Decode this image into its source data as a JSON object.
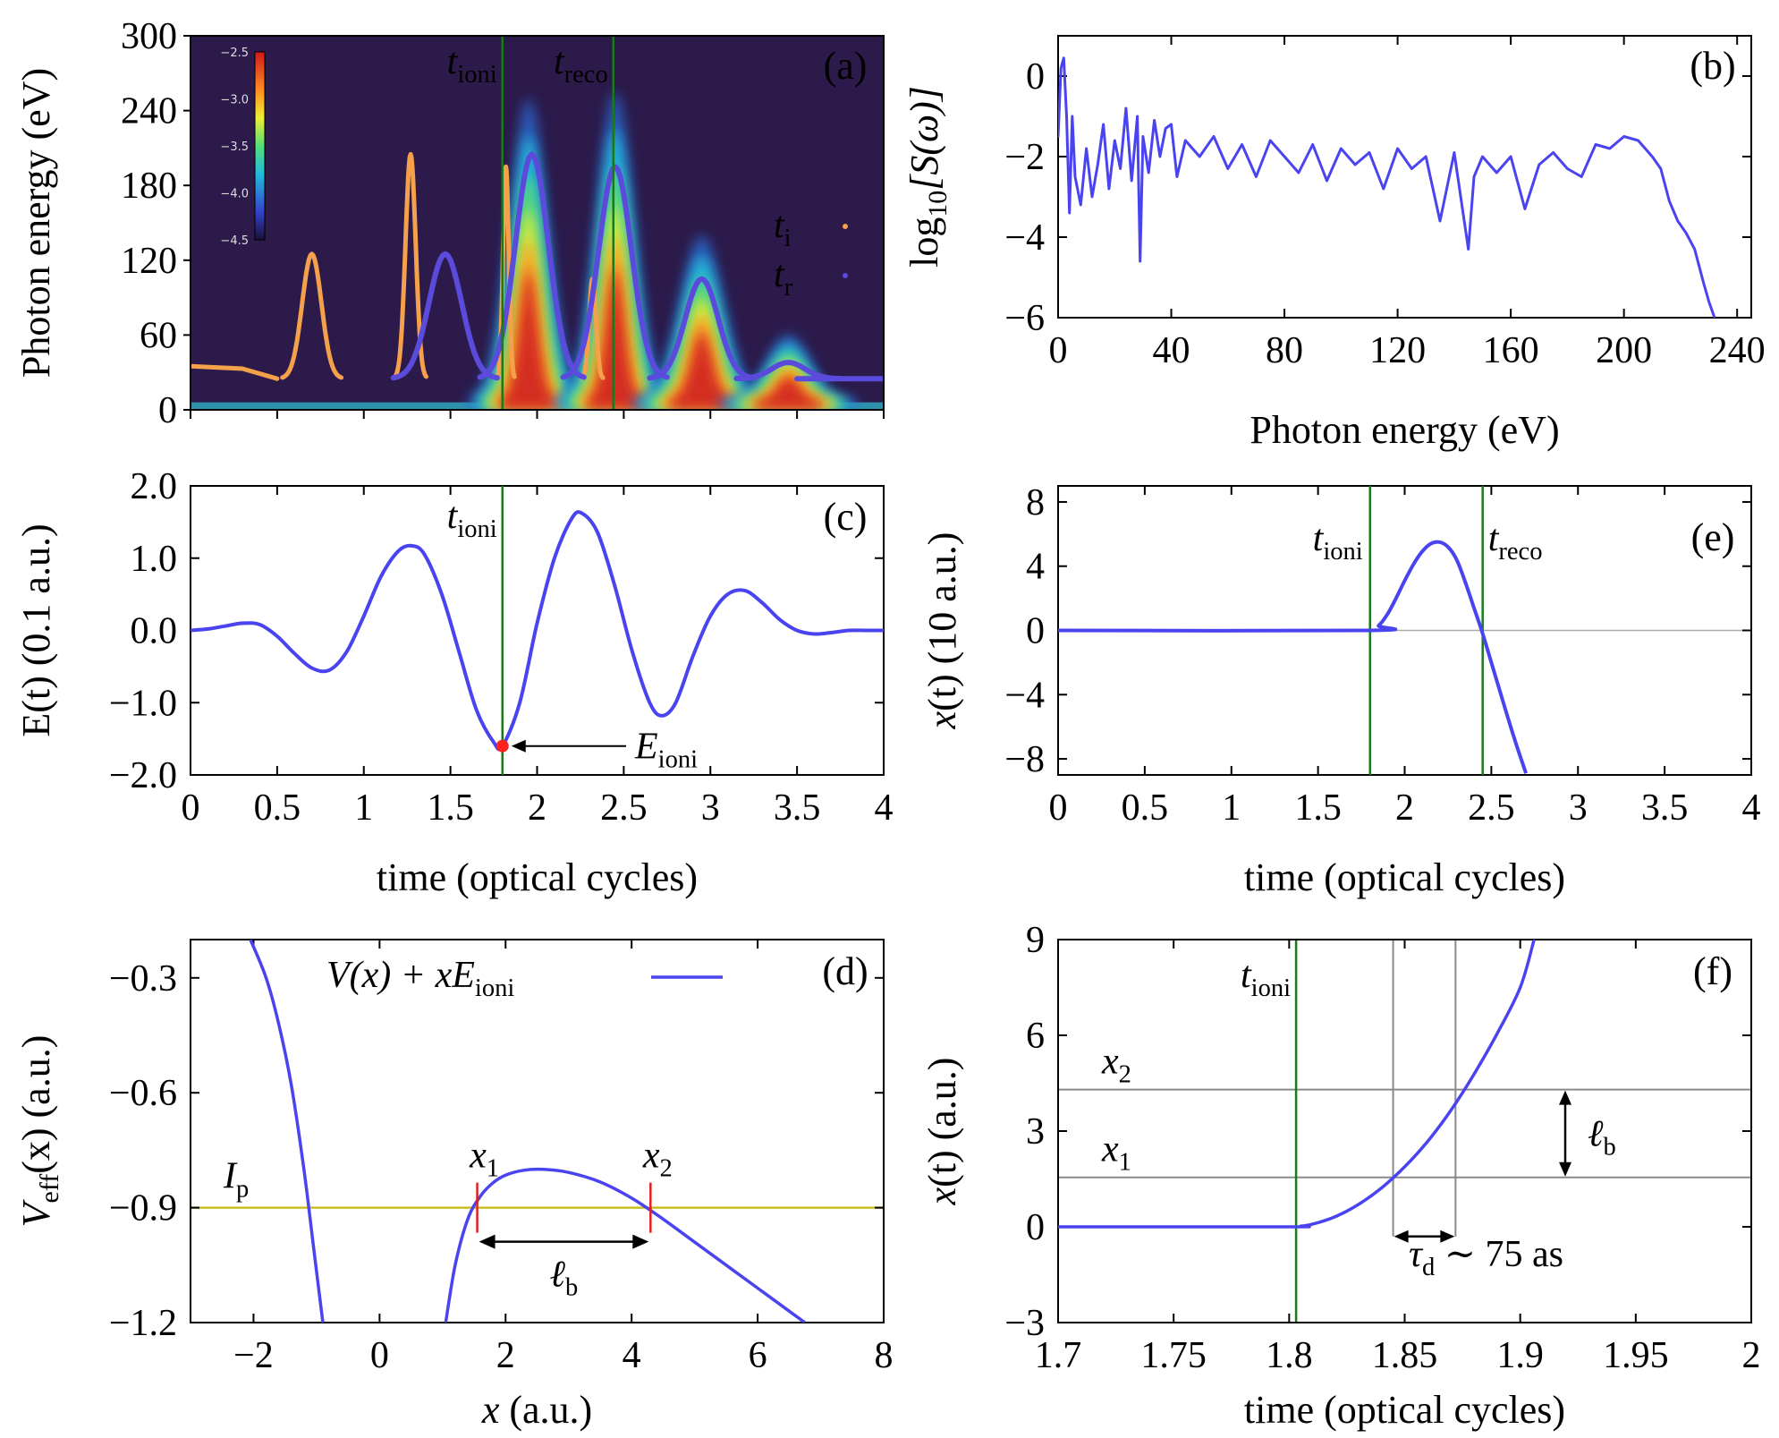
{
  "colors": {
    "curve": "#4a43f0",
    "tion_orange": "#f5a04a",
    "tr_purple": "#5b4bdc",
    "marker_green": "#1a7a1a",
    "ip_line": "#c8c020",
    "barrier_tick": "#e02020",
    "point_red": "#ff2020",
    "heat_background": "#2c1a4a",
    "guide_gray": "#8a8a8a"
  },
  "chart_data": [
    {
      "id": "a",
      "type": "heatmap",
      "panel_label": "(a)",
      "ylabel": "Photon energy (eV)",
      "xlabel": "",
      "xlim": [
        0,
        4
      ],
      "ylim": [
        0,
        300
      ],
      "yticks": [
        "0",
        "60",
        "120",
        "180",
        "240",
        "300"
      ],
      "colorbar": {
        "ticks": [
          "−2.5",
          "−3.0",
          "−3.5",
          "−4.0",
          "−4.5"
        ],
        "range": [
          -4.5,
          -2.5
        ]
      },
      "markers": [
        {
          "label": "t",
          "sub": "ioni",
          "x": 1.8
        },
        {
          "label": "t",
          "sub": "reco",
          "x": 2.44
        }
      ],
      "legend": [
        {
          "label": "t",
          "sub": "i",
          "color": "#f5a04a"
        },
        {
          "label": "t",
          "sub": "r",
          "color": "#5b4bdc"
        }
      ],
      "heat_blobs": [
        {
          "center": 1.95,
          "peak": 250,
          "width": 0.13
        },
        {
          "center": 2.45,
          "peak": 255,
          "width": 0.13
        },
        {
          "center": 2.95,
          "peak": 140,
          "width": 0.15
        },
        {
          "center": 3.45,
          "peak": 60,
          "width": 0.15
        }
      ],
      "ti_arcs": [
        {
          "center": 0.7,
          "peak": 125,
          "half": 0.17,
          "base": 25
        },
        {
          "center": 1.27,
          "peak": 205,
          "half": 0.09,
          "base": 25
        },
        {
          "center": 1.82,
          "peak": 195,
          "half": 0.05,
          "base": 25
        },
        {
          "center": 2.32,
          "peak": 105,
          "half": 0.06,
          "base": 25
        }
      ],
      "ti_baseline": {
        "x": [
          0,
          0.3,
          0.5
        ],
        "y": [
          35,
          33,
          25
        ]
      },
      "tr_arcs": [
        {
          "center": 1.47,
          "peak": 125,
          "half": 0.3,
          "base": 25
        },
        {
          "center": 1.97,
          "peak": 205,
          "half": 0.3,
          "base": 25
        },
        {
          "center": 2.45,
          "peak": 195,
          "half": 0.3,
          "base": 25
        },
        {
          "center": 2.95,
          "peak": 105,
          "half": 0.3,
          "base": 25
        },
        {
          "center": 3.45,
          "peak": 38,
          "half": 0.3,
          "base": 25
        }
      ]
    },
    {
      "id": "b",
      "type": "line",
      "panel_label": "(b)",
      "xlabel": "Photon energy (eV)",
      "ylabel_main": "log",
      "ylabel_sub": "10",
      "ylabel_rest": "[S(ω)]",
      "xlim": [
        0,
        245
      ],
      "ylim": [
        -6,
        1
      ],
      "xticks": [
        "0",
        "40",
        "80",
        "120",
        "160",
        "200",
        "240"
      ],
      "yticks": [
        "0",
        "−2",
        "−4",
        "−6"
      ],
      "x": [
        0,
        1,
        2,
        3,
        4,
        5,
        6,
        8,
        10,
        12,
        14,
        16,
        18,
        20,
        22,
        24,
        26,
        28,
        29,
        30,
        32,
        34,
        36,
        38,
        40,
        42,
        45,
        50,
        55,
        60,
        65,
        70,
        75,
        80,
        85,
        90,
        95,
        100,
        105,
        110,
        115,
        120,
        125,
        130,
        135,
        140,
        145,
        147,
        150,
        155,
        160,
        165,
        170,
        175,
        180,
        185,
        190,
        195,
        200,
        205,
        210,
        213,
        216,
        219,
        222,
        225,
        228,
        230,
        232
      ],
      "y": [
        -1.5,
        0.2,
        0.45,
        -1.0,
        -3.4,
        -1.0,
        -2.5,
        -3.2,
        -1.8,
        -3.0,
        -2.2,
        -1.2,
        -2.8,
        -1.6,
        -2.3,
        -0.8,
        -2.6,
        -1.0,
        -4.6,
        -1.5,
        -2.4,
        -1.1,
        -2.0,
        -1.3,
        -1.2,
        -2.5,
        -1.6,
        -2.0,
        -1.5,
        -2.3,
        -1.7,
        -2.5,
        -1.6,
        -2.0,
        -2.4,
        -1.7,
        -2.6,
        -1.8,
        -2.2,
        -1.9,
        -2.8,
        -1.8,
        -2.3,
        -2.0,
        -3.6,
        -1.9,
        -4.3,
        -2.5,
        -2.0,
        -2.4,
        -2.0,
        -3.3,
        -2.2,
        -1.9,
        -2.3,
        -2.5,
        -1.7,
        -1.8,
        -1.5,
        -1.6,
        -2.0,
        -2.3,
        -3.1,
        -3.6,
        -3.9,
        -4.3,
        -5.1,
        -5.6,
        -6.0
      ]
    },
    {
      "id": "c",
      "type": "line",
      "panel_label": "(c)",
      "xlabel": "time (optical cycles)",
      "ylabel": "E(t) (0.1 a.u.)",
      "xlim": [
        0,
        4
      ],
      "ylim": [
        -2,
        2
      ],
      "xticks": [
        "0",
        "0.5",
        "1",
        "1.5",
        "2",
        "2.5",
        "3",
        "3.5",
        "4"
      ],
      "yticks": [
        "2.0",
        "1.0",
        "0.0",
        "−1.0",
        "−2.0"
      ],
      "marker_ioni_x": 1.8,
      "marker_label": {
        "main": "t",
        "sub": "ioni"
      },
      "point": {
        "x": 1.8,
        "y": -1.6,
        "label_main": "E",
        "label_sub": "ioni"
      },
      "x": [
        0,
        0.1,
        0.2,
        0.3,
        0.4,
        0.5,
        0.6,
        0.7,
        0.8,
        0.9,
        1.0,
        1.1,
        1.2,
        1.28,
        1.35,
        1.45,
        1.55,
        1.65,
        1.75,
        1.8,
        1.9,
        2.0,
        2.1,
        2.2,
        2.26,
        2.35,
        2.45,
        2.55,
        2.65,
        2.72,
        2.8,
        2.9,
        3.0,
        3.1,
        3.2,
        3.3,
        3.4,
        3.5,
        3.6,
        3.7,
        3.8,
        3.9,
        4.0
      ],
      "y": [
        0,
        0.02,
        0.06,
        0.1,
        0.08,
        -0.08,
        -0.32,
        -0.52,
        -0.55,
        -0.3,
        0.2,
        0.75,
        1.1,
        1.17,
        1.05,
        0.5,
        -0.3,
        -1.1,
        -1.55,
        -1.6,
        -1.0,
        0.1,
        1.0,
        1.55,
        1.62,
        1.35,
        0.6,
        -0.3,
        -1.0,
        -1.18,
        -1.0,
        -0.35,
        0.2,
        0.5,
        0.55,
        0.38,
        0.15,
        0.0,
        -0.05,
        -0.03,
        0.0,
        0.0,
        0.0
      ]
    },
    {
      "id": "e",
      "type": "line",
      "panel_label": "(e)",
      "xlabel": "time (optical cycles)",
      "ylabel_main": "x",
      "ylabel_rest": "(t) (10 a.u.)",
      "xlim": [
        0,
        4
      ],
      "ylim": [
        -9,
        9
      ],
      "xticks": [
        "0",
        "0.5",
        "1",
        "1.5",
        "2",
        "2.5",
        "3",
        "3.5",
        "4"
      ],
      "yticks": [
        "8",
        "4",
        "0",
        "−4",
        "−8"
      ],
      "markers": [
        {
          "label": "t",
          "sub": "ioni",
          "x": 1.8
        },
        {
          "label": "t",
          "sub": "reco",
          "x": 2.45
        }
      ],
      "x": [
        0,
        1.8,
        1.85,
        1.9,
        1.95,
        2.0,
        2.05,
        2.1,
        2.15,
        2.2,
        2.25,
        2.3,
        2.35,
        2.4,
        2.45,
        2.5,
        2.55,
        2.6,
        2.65,
        2.7
      ],
      "y": [
        0,
        0,
        0.3,
        1.0,
        2.0,
        3.1,
        4.1,
        4.9,
        5.4,
        5.5,
        5.2,
        4.4,
        3.0,
        1.4,
        -0.2,
        -2.0,
        -3.8,
        -5.6,
        -7.3,
        -8.9
      ]
    },
    {
      "id": "d",
      "type": "line",
      "panel_label": "(d)",
      "xlabel_main": "x",
      "xlabel_rest": " (a.u.)",
      "ylabel_main": "V",
      "ylabel_sub": "eff",
      "ylabel_rest": "(x) (a.u.)",
      "xlim": [
        -3,
        8
      ],
      "ylim": [
        -1.2,
        -0.2
      ],
      "xticks": [
        "−2",
        "0",
        "2",
        "4",
        "6",
        "8"
      ],
      "yticks": [
        "−0.3",
        "−0.6",
        "−0.9",
        "−1.2"
      ],
      "legend": {
        "main": "V(x) + xE",
        "sub": "ioni"
      },
      "ip": {
        "label_main": "I",
        "label_sub": "p",
        "y": -0.9
      },
      "barrier_points": [
        {
          "label_main": "x",
          "label_sub": "1",
          "x": 1.55
        },
        {
          "label_main": "x",
          "label_sub": "2",
          "x": 4.3
        }
      ],
      "width_label": {
        "main": "ℓ",
        "sub": "b"
      },
      "left_branch": {
        "x": [
          -2.05,
          -1.8,
          -1.6,
          -1.4,
          -1.2,
          -1.05,
          -0.9
        ],
        "y": [
          -0.2,
          -0.3,
          -0.42,
          -0.58,
          -0.8,
          -1.0,
          -1.2
        ]
      },
      "right_branch": {
        "x": [
          1.05,
          1.2,
          1.4,
          1.6,
          1.8,
          2.0,
          2.3,
          2.6,
          3.0,
          3.5,
          4.0,
          4.5,
          5.0,
          5.5,
          6.0,
          6.5,
          6.75
        ],
        "y": [
          -1.2,
          -1.05,
          -0.93,
          -0.87,
          -0.835,
          -0.815,
          -0.802,
          -0.8,
          -0.808,
          -0.833,
          -0.875,
          -0.93,
          -0.99,
          -1.05,
          -1.11,
          -1.17,
          -1.2
        ]
      }
    },
    {
      "id": "f",
      "type": "line",
      "panel_label": "(f)",
      "xlabel": "time (optical cycles)",
      "ylabel_main": "x",
      "ylabel_rest": "(t) (a.u.)",
      "xlim": [
        1.7,
        2.0
      ],
      "ylim": [
        -3,
        9
      ],
      "xticks": [
        "1.7",
        "1.75",
        "1.8",
        "1.85",
        "1.9",
        "1.95",
        "2"
      ],
      "yticks": [
        "9",
        "6",
        "3",
        "0",
        "−3"
      ],
      "marker": {
        "label": "t",
        "sub": "ioni",
        "x": 1.803
      },
      "levels": [
        {
          "label_main": "x",
          "label_sub": "2",
          "y": 4.3
        },
        {
          "label_main": "x",
          "label_sub": "1",
          "y": 1.55
        }
      ],
      "crossings": [
        1.845,
        1.872
      ],
      "delay_label": {
        "main": "τ",
        "sub": "d",
        "rest": " ∼ 75 as"
      },
      "width_label": {
        "main": "ℓ",
        "sub": "b"
      },
      "x": [
        1.7,
        1.8,
        1.805,
        1.81,
        1.82,
        1.83,
        1.84,
        1.85,
        1.86,
        1.87,
        1.88,
        1.89,
        1.9,
        1.906
      ],
      "y": [
        0,
        0,
        0.02,
        0.08,
        0.32,
        0.7,
        1.22,
        1.88,
        2.68,
        3.65,
        4.78,
        6.05,
        7.5,
        9.0
      ]
    }
  ]
}
